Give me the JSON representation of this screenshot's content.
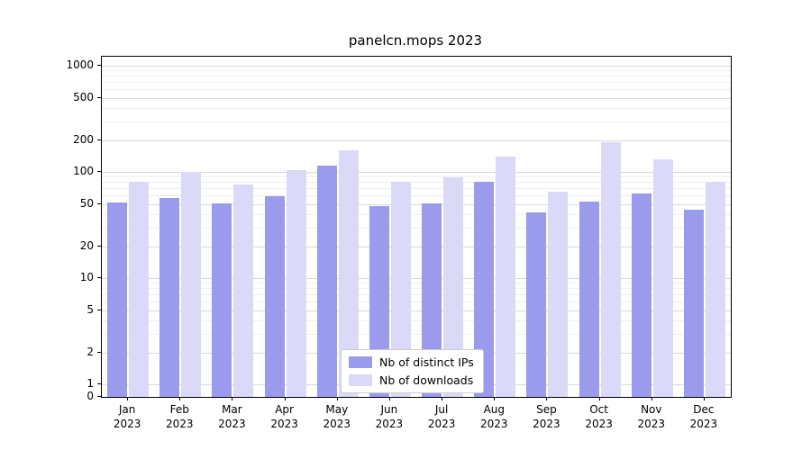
{
  "chart_data": {
    "type": "bar",
    "title": "panelcn.mops 2023",
    "categories": [
      "Jan",
      "Feb",
      "Mar",
      "Apr",
      "May",
      "Jun",
      "Jul",
      "Aug",
      "Sep",
      "Oct",
      "Nov",
      "Dec"
    ],
    "year": "2023",
    "series": [
      {
        "name": "Nb of distinct IPs",
        "color": "#9b9bee",
        "values": [
          52,
          57,
          51,
          59,
          115,
          48,
          51,
          80,
          42,
          53,
          63,
          44
        ]
      },
      {
        "name": "Nb of downloads",
        "color": "#dadaf8",
        "values": [
          80,
          101,
          76,
          104,
          160,
          80,
          89,
          140,
          65,
          192,
          131,
          80
        ]
      }
    ],
    "yscale": "symlog",
    "yticks": [
      0,
      1,
      2,
      5,
      10,
      20,
      50,
      100,
      200,
      500,
      1000
    ],
    "ylim": [
      0,
      1200
    ],
    "xlabel": "",
    "ylabel": "",
    "grid": "horizontal",
    "legend_position": "lower center"
  }
}
